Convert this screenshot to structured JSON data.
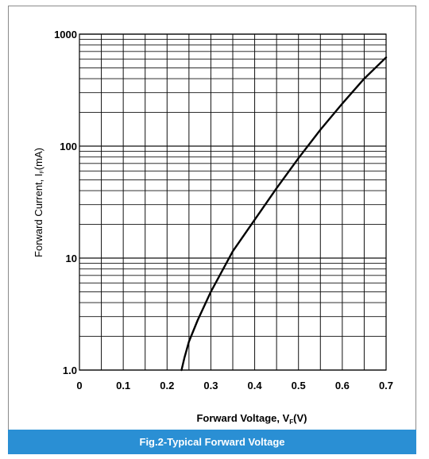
{
  "chart_data": {
    "type": "line",
    "title": "",
    "xlabel": "Forward Voltage, VF(V)",
    "xlabel_main": "Forward Voltage, V",
    "xlabel_sub": "F",
    "xlabel_tail": "(V)",
    "ylabel_main": "Forward Current, I",
    "ylabel_sub": "F",
    "ylabel_tail": "(mA)",
    "xlim": [
      0,
      0.7
    ],
    "ylim": [
      1,
      1000
    ],
    "y_scale": "log",
    "grid": true,
    "x_ticks": [
      {
        "v": 0,
        "label": "0"
      },
      {
        "v": 0.1,
        "label": "0.1"
      },
      {
        "v": 0.2,
        "label": "0.2"
      },
      {
        "v": 0.3,
        "label": "0.3"
      },
      {
        "v": 0.4,
        "label": "0.4"
      },
      {
        "v": 0.5,
        "label": "0.5"
      },
      {
        "v": 0.6,
        "label": "0.6"
      },
      {
        "v": 0.7,
        "label": "0.7"
      }
    ],
    "y_ticks": [
      {
        "v": 1,
        "label": "1.0"
      },
      {
        "v": 10,
        "label": "10"
      },
      {
        "v": 100,
        "label": "100"
      },
      {
        "v": 1000,
        "label": "1000"
      }
    ],
    "series": [
      {
        "color": "#000000",
        "x": [
          0.233,
          0.24,
          0.25,
          0.27,
          0.3,
          0.35,
          0.4,
          0.45,
          0.5,
          0.55,
          0.6,
          0.65,
          0.7
        ],
        "y": [
          1.0,
          1.3,
          1.8,
          2.8,
          5.0,
          11.5,
          22,
          42,
          78,
          140,
          240,
          400,
          620
        ]
      }
    ]
  },
  "caption": {
    "text": "Fig.2-Typical Forward Voltage",
    "bg_color": "#2a8fd4"
  }
}
